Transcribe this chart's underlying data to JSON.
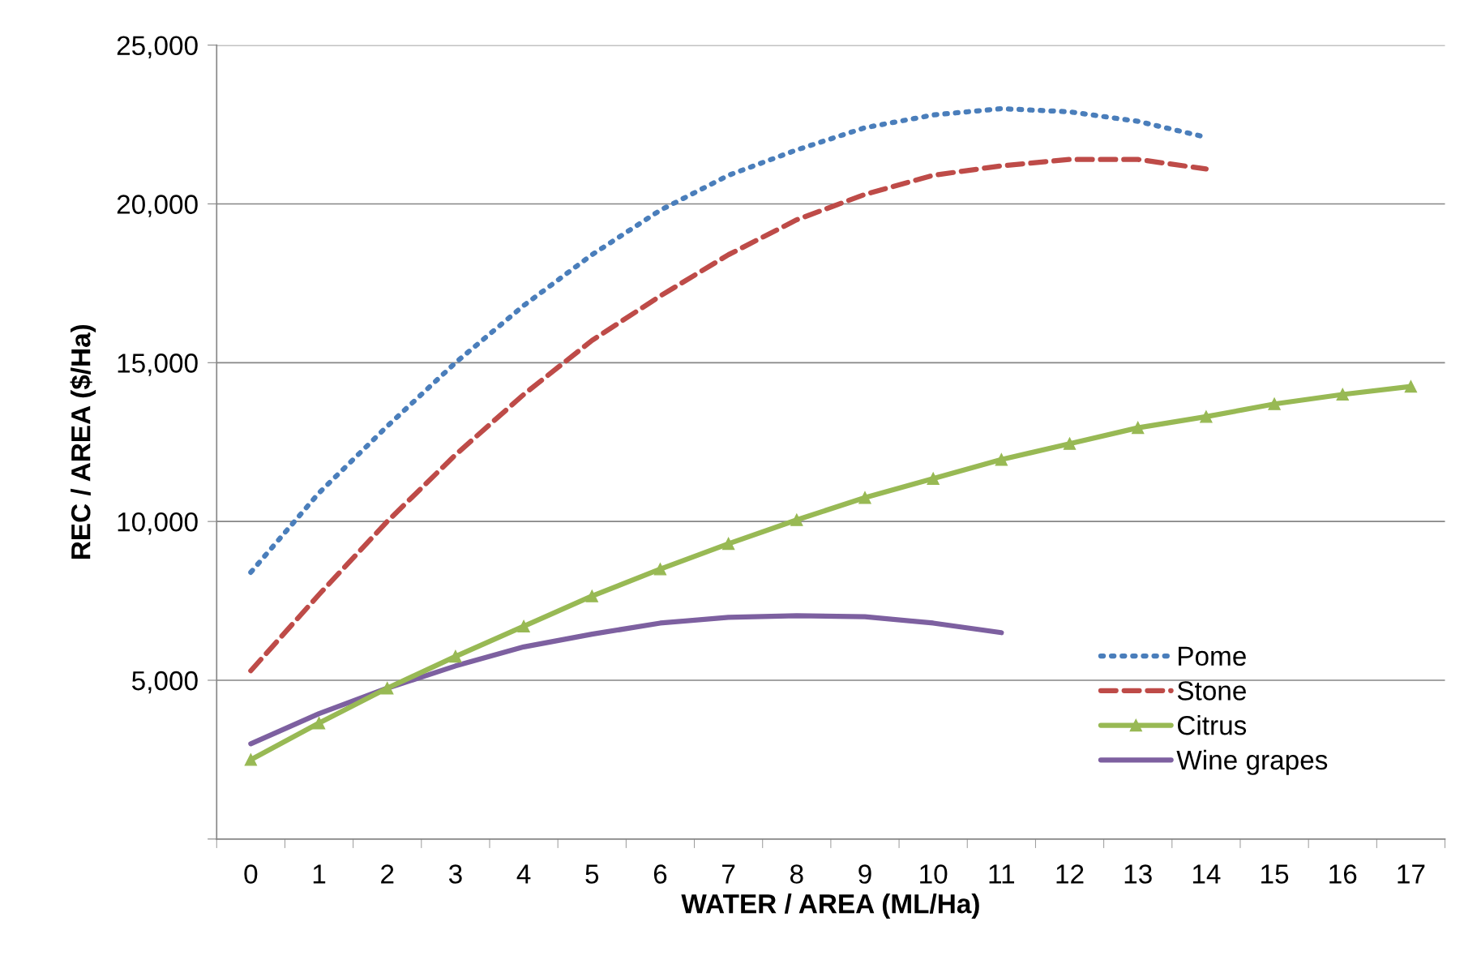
{
  "chart_data": {
    "type": "line",
    "xlabel": "WATER / AREA (ML/Ha)",
    "ylabel": "REC / AREA ($/Ha)",
    "categories": [
      "0",
      "1",
      "2",
      "3",
      "4",
      "5",
      "6",
      "7",
      "8",
      "9",
      "10",
      "11",
      "12",
      "13",
      "14",
      "15",
      "16",
      "17"
    ],
    "ylim": [
      0,
      25000
    ],
    "yticks": [
      {
        "value": 0,
        "label": null
      },
      {
        "value": 5000,
        "label": "5,000"
      },
      {
        "value": 10000,
        "label": "10,000"
      },
      {
        "value": 15000,
        "label": "15,000"
      },
      {
        "value": 20000,
        "label": "20,000"
      },
      {
        "value": 25000,
        "label": "25,000"
      }
    ],
    "grid": "y",
    "legend": "bottom right",
    "series": [
      {
        "name": "Pome",
        "color": "#4a7ebb",
        "line_style": "dotted",
        "marker": "none",
        "values": [
          8400,
          10900,
          13000,
          15000,
          16800,
          18400,
          19800,
          20900,
          21700,
          22400,
          22800,
          23000,
          22900,
          22600,
          22100,
          null,
          null,
          null
        ]
      },
      {
        "name": "Stone",
        "color": "#be4b48",
        "line_style": "dashed",
        "marker": "none",
        "values": [
          5300,
          7700,
          10000,
          12100,
          14000,
          15700,
          17100,
          18400,
          19500,
          20300,
          20900,
          21200,
          21400,
          21400,
          21100,
          null,
          null,
          null
        ]
      },
      {
        "name": "Citrus",
        "color": "#98b954",
        "line_style": "solid",
        "marker": "triangle",
        "values": [
          2500,
          3650,
          4750,
          5750,
          6700,
          7650,
          8500,
          9300,
          10050,
          10750,
          11350,
          11950,
          12450,
          12950,
          13300,
          13700,
          14000,
          14250
        ]
      },
      {
        "name": "Wine grapes",
        "color": "#7d60a0",
        "line_style": "solid",
        "marker": "none",
        "values": [
          3000,
          3950,
          4750,
          5450,
          6050,
          6450,
          6800,
          6980,
          7030,
          7000,
          6800,
          6500,
          null,
          null,
          null,
          null,
          null,
          null
        ]
      }
    ]
  }
}
